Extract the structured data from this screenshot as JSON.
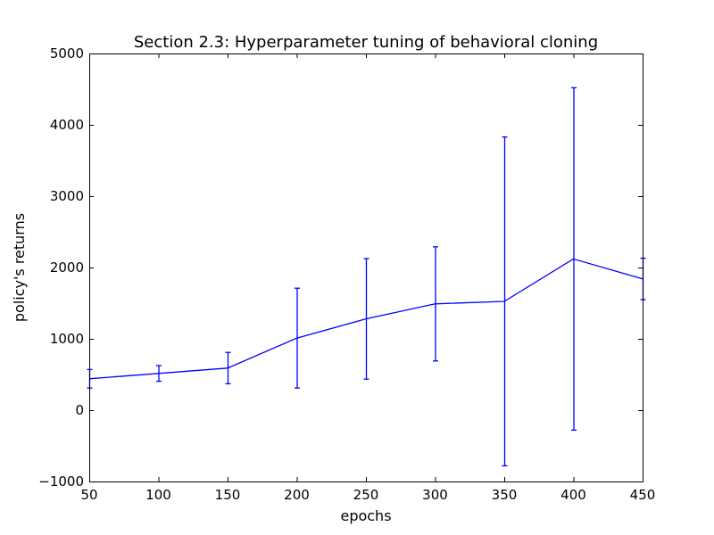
{
  "chart_data": {
    "type": "line",
    "title": "Section 2.3: Hyperparameter tuning of behavioral cloning",
    "xlabel": "epochs",
    "ylabel": "policy's returns",
    "xlim": [
      50,
      450
    ],
    "ylim": [
      -1000,
      5000
    ],
    "xticks": [
      50,
      100,
      150,
      200,
      250,
      300,
      350,
      400,
      450
    ],
    "yticks": [
      -1000,
      0,
      1000,
      2000,
      3000,
      4000,
      5000
    ],
    "xtick_labels": [
      "50",
      "100",
      "150",
      "200",
      "250",
      "300",
      "350",
      "400",
      "450"
    ],
    "ytick_labels": [
      "−1000",
      "0",
      "1000",
      "2000",
      "3000",
      "4000",
      "5000"
    ],
    "grid": false,
    "line_color": "#0000ff",
    "series": [
      {
        "x": [
          50,
          100,
          150,
          200,
          250,
          300,
          350,
          400,
          450
        ],
        "y": [
          440,
          515,
          590,
          1010,
          1280,
          1490,
          1525,
          2120,
          1840
        ],
        "yerr": [
          130,
          110,
          220,
          700,
          845,
          800,
          2305,
          2400,
          290
        ]
      }
    ]
  }
}
